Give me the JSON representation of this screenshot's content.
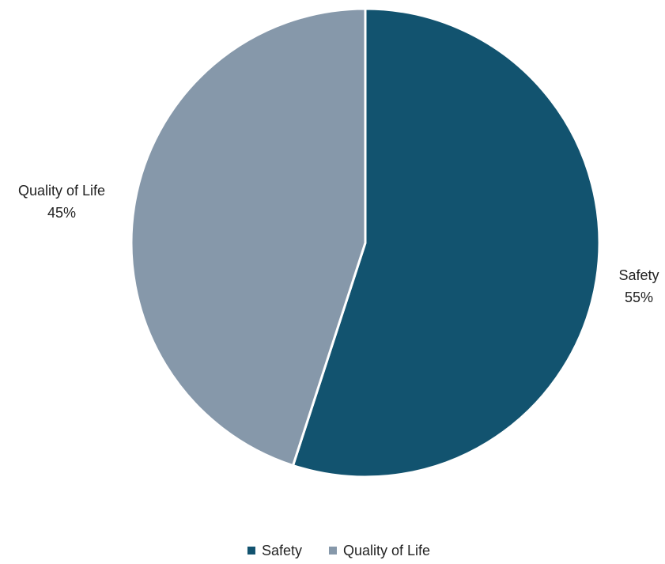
{
  "chart_data": {
    "type": "pie",
    "title": "",
    "categories": [
      "Safety",
      "Quality of Life"
    ],
    "values": [
      55,
      45
    ],
    "data_labels": [
      {
        "name": "Safety",
        "value": "55%"
      },
      {
        "name": "Quality of Life",
        "value": "45%"
      }
    ],
    "colors": [
      "#12536f",
      "#8698aa"
    ],
    "legend": {
      "placement": "bottom",
      "items": [
        "Safety",
        "Quality of Life"
      ]
    }
  }
}
